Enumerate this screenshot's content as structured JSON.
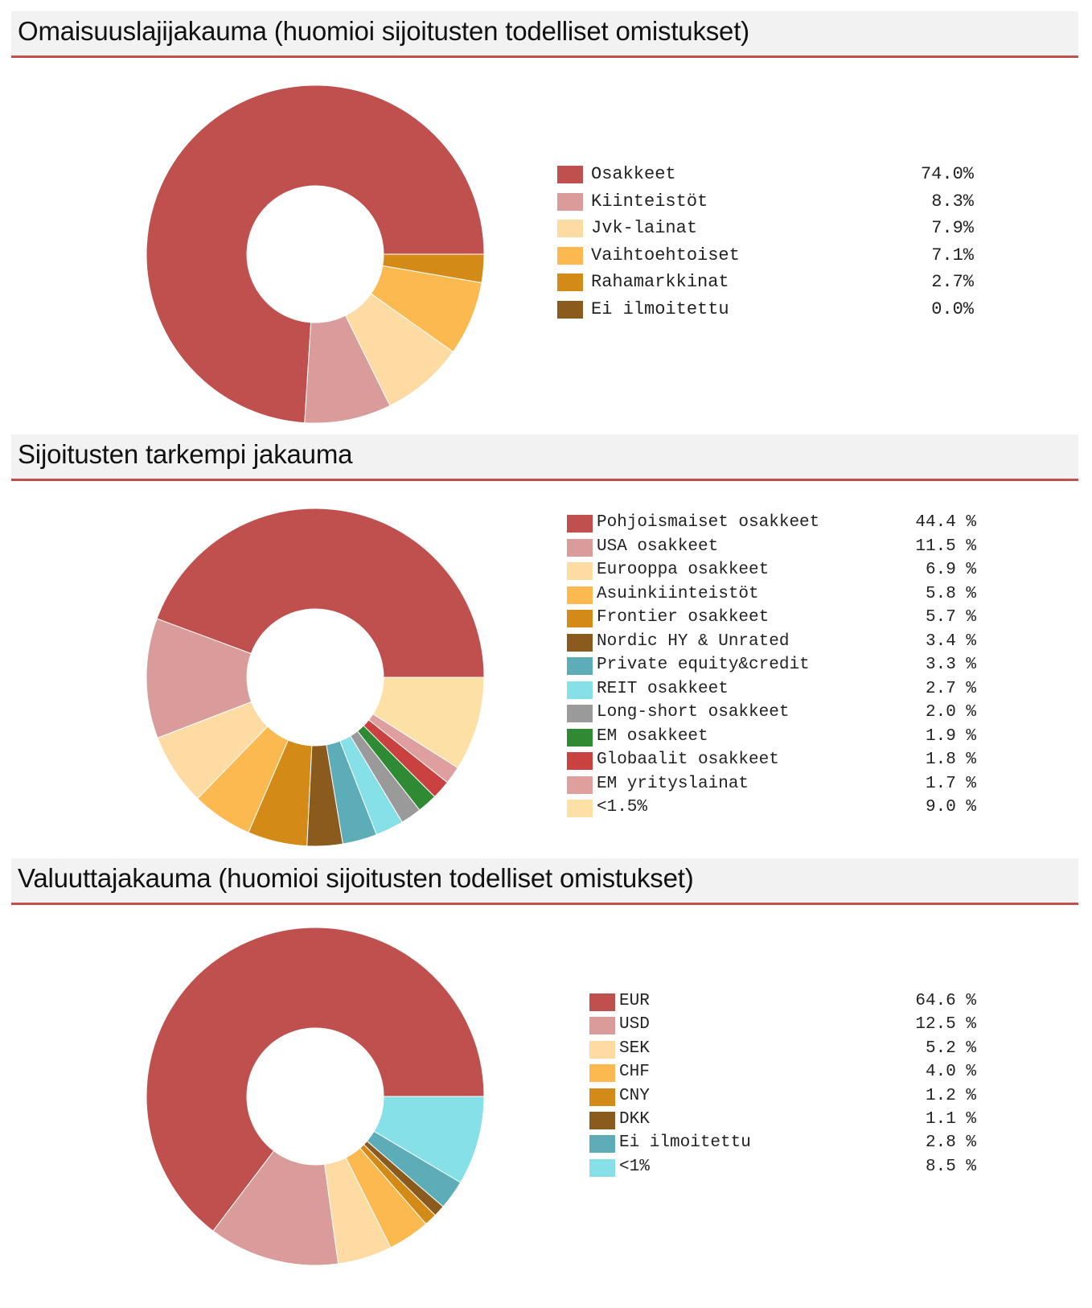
{
  "colors": {
    "header_bg": "#f2f2f2",
    "header_rule": "#c0504d"
  },
  "chart_data": [
    {
      "type": "pie",
      "style": "donut",
      "title": "Omaisuuslajijakauma (huomioi sijoitusten todelliset omistukset)",
      "categories": [
        "Osakkeet",
        "Kiinteistöt",
        "Jvk-lainat",
        "Vaihtoehtoiset",
        "Rahamarkkinat",
        "Ei ilmoitettu"
      ],
      "values": [
        74.0,
        8.3,
        7.9,
        7.1,
        2.7,
        0.0
      ],
      "value_labels": [
        "74.0%",
        "8.3%",
        "7.9%",
        "7.1%",
        "2.7%",
        "0.0%"
      ],
      "colors": [
        "#c0504d",
        "#da9c9a",
        "#fddba3",
        "#fbb94f",
        "#d38a17",
        "#8b5a1d"
      ],
      "legend_position": "right"
    },
    {
      "type": "pie",
      "style": "donut",
      "title": "Sijoitusten tarkempi jakauma",
      "categories": [
        "Pohjoismaiset osakkeet",
        "USA osakkeet",
        "Eurooppa osakkeet",
        "Asuinkiinteistöt",
        "Frontier osakkeet",
        "Nordic HY & Unrated",
        "Private equity&credit",
        "REIT osakkeet",
        "Long-short osakkeet",
        "EM osakkeet",
        "Globaalit osakkeet",
        "EM yrityslainat",
        "<1.5%"
      ],
      "values": [
        44.4,
        11.5,
        6.9,
        5.8,
        5.7,
        3.4,
        3.3,
        2.7,
        2.0,
        1.9,
        1.8,
        1.7,
        9.0
      ],
      "value_labels": [
        "44.4 %",
        "11.5 %",
        "6.9 %",
        "5.8 %",
        "5.7 %",
        "3.4 %",
        "3.3 %",
        "2.7 %",
        "2.0 %",
        "1.9 %",
        "1.8 %",
        "1.7 %",
        "9.0 %"
      ],
      "colors": [
        "#c0504d",
        "#da9c9a",
        "#fddba3",
        "#fbb94f",
        "#d38a17",
        "#8b5a1d",
        "#5cadb7",
        "#86e0e8",
        "#9a9a9a",
        "#2e8b34",
        "#c9423f",
        "#df9f9e",
        "#fde0a6"
      ],
      "legend_position": "right"
    },
    {
      "type": "pie",
      "style": "donut",
      "title": "Valuuttajakauma (huomioi sijoitusten todelliset omistukset)",
      "categories": [
        "EUR",
        "USD",
        "SEK",
        "CHF",
        "CNY",
        "DKK",
        "Ei ilmoitettu",
        "<1%"
      ],
      "values": [
        64.6,
        12.5,
        5.2,
        4.0,
        1.2,
        1.1,
        2.8,
        8.5
      ],
      "value_labels": [
        "64.6 %",
        "12.5 %",
        "5.2 %",
        "4.0 %",
        "1.2 %",
        "1.1 %",
        "2.8 %",
        "8.5 %"
      ],
      "colors": [
        "#c0504d",
        "#da9c9a",
        "#fddba3",
        "#fbb94f",
        "#d38a17",
        "#8b5a1d",
        "#5cadb7",
        "#86e0e8"
      ],
      "legend_position": "right"
    }
  ]
}
